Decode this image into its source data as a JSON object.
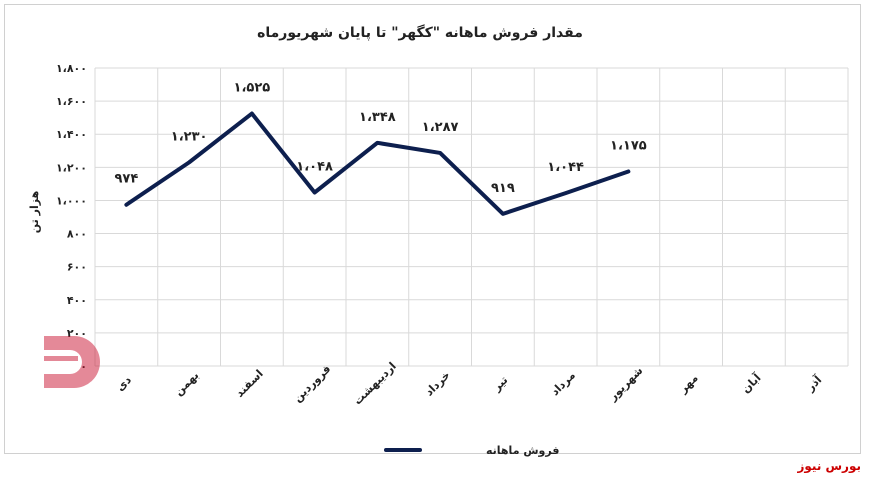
{
  "chart_data": {
    "type": "line",
    "title": "مقدار فروش ماهانه \"کگهر\" تا پایان شهریورماه",
    "ylabel": "هزار تن",
    "xlabel": "",
    "ylim": [
      0,
      1800
    ],
    "yticks": [
      "۰",
      "۲۰۰",
      "۴۰۰",
      "۶۰۰",
      "۸۰۰",
      "۱،۰۰۰",
      "۱،۲۰۰",
      "۱،۴۰۰",
      "۱،۶۰۰",
      "۱،۸۰۰"
    ],
    "ytick_values": [
      0,
      200,
      400,
      600,
      800,
      1000,
      1200,
      1400,
      1600,
      1800
    ],
    "categories": [
      "دی",
      "بهمن",
      "اسفند",
      "فروردین",
      "اردیبهشت",
      "خرداد",
      "تیر",
      "مرداد",
      "شهریور",
      "مهر",
      "آبان",
      "آذر"
    ],
    "series": [
      {
        "name": "فروش ماهانه",
        "color": "#0d1f4e",
        "values": [
          974,
          1230,
          1525,
          1048,
          1348,
          1287,
          919,
          1044,
          1175,
          null,
          null,
          null
        ],
        "labels": [
          "۹۷۴",
          "۱،۲۳۰",
          "۱،۵۲۵",
          "۱،۰۴۸",
          "۱،۳۴۸",
          "۱،۲۸۷",
          "۹۱۹",
          "۱،۰۴۴",
          "۱،۱۷۵",
          "",
          "",
          ""
        ]
      }
    ],
    "grid": true,
    "legend": "bottom"
  },
  "watermark": {
    "text": "بورس نیوز",
    "color": "#c8102e"
  },
  "source_credit": "بورس نیوز"
}
